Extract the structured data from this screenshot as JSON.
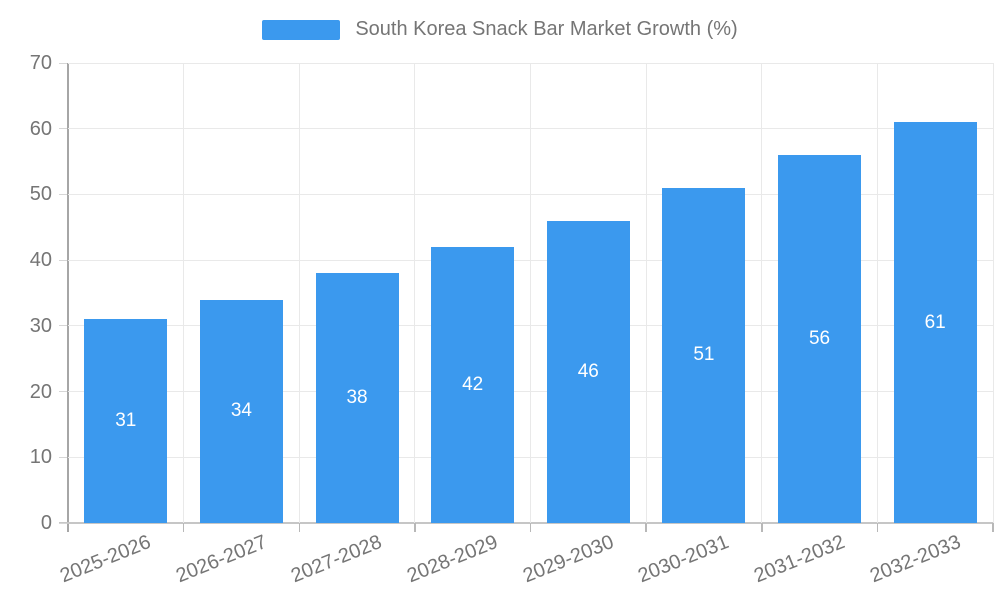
{
  "legend": {
    "label": "South Korea Snack Bar Market Growth (%)"
  },
  "chart_data": {
    "type": "bar",
    "title": "South Korea Snack Bar Market Growth (%)",
    "categories": [
      "2025-2026",
      "2026-2027",
      "2027-2028",
      "2028-2029",
      "2029-2030",
      "2030-2031",
      "2031-2032",
      "2032-2033"
    ],
    "values": [
      31,
      34,
      38,
      42,
      46,
      51,
      56,
      61
    ],
    "xlabel": "",
    "ylabel": "",
    "ylim": [
      0,
      70
    ],
    "ytick_step": 10,
    "ytick_labels": [
      "0",
      "10",
      "20",
      "30",
      "40",
      "50",
      "60",
      "70"
    ],
    "grid": true,
    "legend_position": "top-center",
    "value_label_position": "inside-center",
    "colors": {
      "bar": "#3B99EE",
      "value_label": "#ffffff",
      "axis_text": "#757575",
      "gridline": "#e9e9e9",
      "y_axis_line": "#a6a6a6",
      "x_axis_line": "#c6c6c6"
    }
  }
}
